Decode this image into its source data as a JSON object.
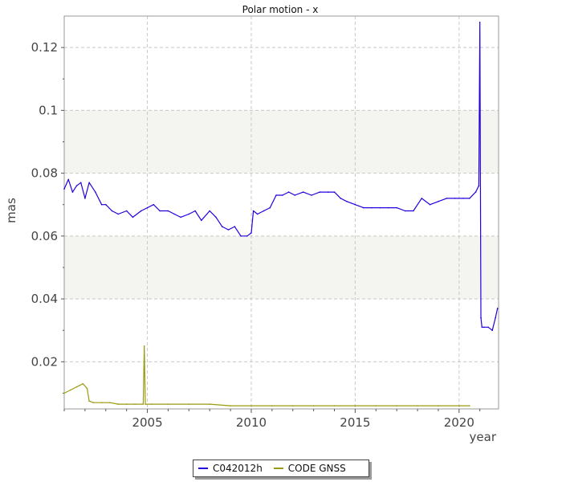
{
  "chart_data": {
    "type": "line",
    "title": "Polar motion - x",
    "xlabel": "year",
    "ylabel": "mas",
    "xlim": [
      2001.0,
      2021.9
    ],
    "ylim": [
      0.005,
      0.13
    ],
    "x_ticks": [
      2005,
      2010,
      2015,
      2020
    ],
    "x_tick_labels": [
      "2005",
      "2010",
      "2015",
      "2020"
    ],
    "y_ticks": [
      0.02,
      0.04,
      0.06,
      0.08,
      0.1,
      0.12
    ],
    "y_tick_labels": [
      "0.02",
      "0.04",
      "0.06",
      "0.08",
      "0.1",
      "0.12"
    ],
    "grid": true,
    "shaded_bands": [
      [
        0.04,
        0.06
      ],
      [
        0.08,
        0.1
      ]
    ],
    "legend_position": "bottom-center",
    "series": [
      {
        "name": "C042012h",
        "color": "#2200dd",
        "x": [
          2001.0,
          2001.2,
          2001.4,
          2001.6,
          2001.8,
          2002.0,
          2002.2,
          2002.5,
          2002.8,
          2003.0,
          2003.3,
          2003.6,
          2004.0,
          2004.3,
          2004.7,
          2005.0,
          2005.3,
          2005.6,
          2006.0,
          2006.3,
          2006.6,
          2007.0,
          2007.3,
          2007.6,
          2008.0,
          2008.3,
          2008.6,
          2008.9,
          2009.2,
          2009.5,
          2009.8,
          2010.0,
          2010.1,
          2010.3,
          2010.6,
          2010.9,
          2011.2,
          2011.5,
          2011.8,
          2012.1,
          2012.5,
          2012.9,
          2013.3,
          2013.7,
          2014.0,
          2014.3,
          2014.6,
          2015.0,
          2015.4,
          2015.8,
          2016.2,
          2016.6,
          2017.0,
          2017.4,
          2017.8,
          2018.2,
          2018.6,
          2019.0,
          2019.4,
          2019.8,
          2020.2,
          2020.5,
          2020.8,
          2020.95,
          2021.0,
          2021.05,
          2021.1,
          2021.2,
          2021.4,
          2021.6,
          2021.75,
          2021.85
        ],
        "values": [
          0.075,
          0.078,
          0.074,
          0.076,
          0.077,
          0.072,
          0.077,
          0.074,
          0.07,
          0.07,
          0.068,
          0.067,
          0.068,
          0.066,
          0.068,
          0.069,
          0.07,
          0.068,
          0.068,
          0.067,
          0.066,
          0.067,
          0.068,
          0.065,
          0.068,
          0.066,
          0.063,
          0.062,
          0.063,
          0.06,
          0.06,
          0.061,
          0.068,
          0.067,
          0.068,
          0.069,
          0.073,
          0.073,
          0.074,
          0.073,
          0.074,
          0.073,
          0.074,
          0.074,
          0.074,
          0.072,
          0.071,
          0.07,
          0.069,
          0.069,
          0.069,
          0.069,
          0.069,
          0.068,
          0.068,
          0.072,
          0.07,
          0.071,
          0.072,
          0.072,
          0.072,
          0.072,
          0.074,
          0.076,
          0.128,
          0.034,
          0.031,
          0.031,
          0.031,
          0.03,
          0.034,
          0.037
        ]
      },
      {
        "name": "CODE GNSS",
        "color": "#9a9a10",
        "x": [
          2001.0,
          2001.3,
          2001.6,
          2001.9,
          2002.1,
          2002.2,
          2002.4,
          2002.8,
          2003.2,
          2003.6,
          2004.0,
          2004.4,
          2004.8,
          2004.85,
          2004.9,
          2005.2,
          2006.0,
          2007.0,
          2008.0,
          2009.0,
          2010.0,
          2011.0,
          2012.0,
          2013.0,
          2014.0,
          2015.0,
          2016.0,
          2017.0,
          2018.0,
          2019.0,
          2020.0,
          2020.5
        ],
        "values": [
          0.01,
          0.011,
          0.012,
          0.013,
          0.0115,
          0.0075,
          0.007,
          0.007,
          0.007,
          0.0065,
          0.0065,
          0.0065,
          0.0065,
          0.025,
          0.0065,
          0.0065,
          0.0065,
          0.0065,
          0.0065,
          0.006,
          0.006,
          0.006,
          0.006,
          0.006,
          0.006,
          0.006,
          0.006,
          0.006,
          0.006,
          0.006,
          0.006,
          0.006
        ]
      }
    ]
  }
}
